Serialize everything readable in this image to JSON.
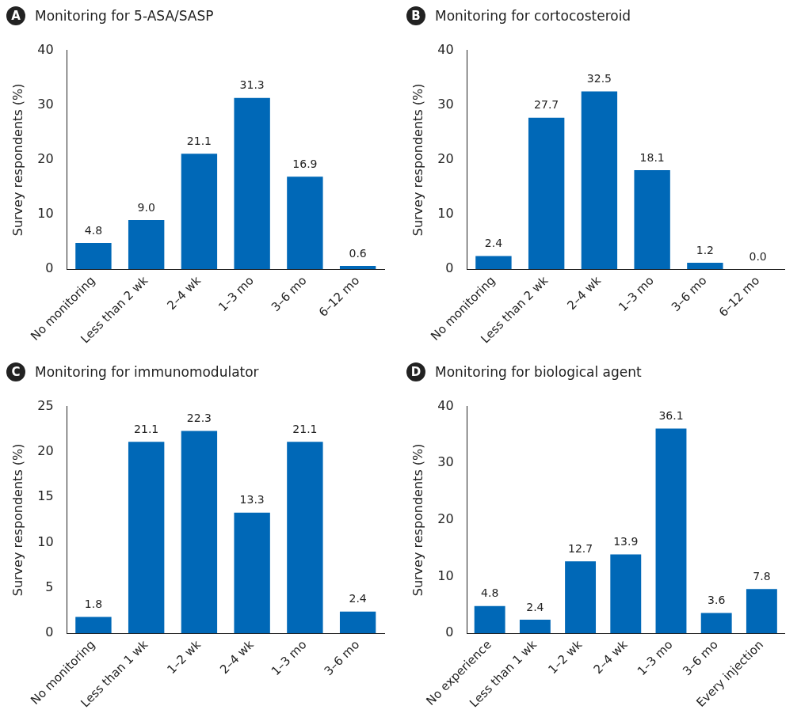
{
  "chart_data": [
    {
      "type": "bar",
      "title": "Monitoring for 5-ASA/SASP",
      "annotations": [
        "A"
      ],
      "ylabel": "Survey respondents (%)",
      "categories": [
        "No monitoring",
        "Less than 2 wk",
        "2–4 wk",
        "1–3 mo",
        "3–6 mo",
        "6–12 mo"
      ],
      "values": [
        4.8,
        9.0,
        21.1,
        31.3,
        16.9,
        0.6
      ],
      "color": "#0068b7",
      "ylim": [
        0,
        40
      ],
      "yticks": [
        0,
        10,
        20,
        30,
        40
      ],
      "grid": false,
      "legend": false,
      "value_labels": [
        "4.8",
        "9.0",
        "21.1",
        "31.3",
        "16.9",
        "0.6"
      ]
    },
    {
      "type": "bar",
      "title": "Monitoring for cortocosteroid",
      "annotations": [
        "B"
      ],
      "ylabel": "Survey respondents (%)",
      "categories": [
        "No monitoring",
        "Less than 2 wk",
        "2–4 wk",
        "1–3 mo",
        "3–6 mo",
        "6–12 mo"
      ],
      "values": [
        2.4,
        27.7,
        32.5,
        18.1,
        1.2,
        0.0
      ],
      "color": "#0068b7",
      "ylim": [
        0,
        40
      ],
      "yticks": [
        0,
        10,
        20,
        30,
        40
      ],
      "grid": false,
      "legend": false,
      "value_labels": [
        "2.4",
        "27.7",
        "32.5",
        "18.1",
        "1.2",
        "0.0"
      ]
    },
    {
      "type": "bar",
      "title": "Monitoring for immunomodulator",
      "annotations": [
        "C"
      ],
      "ylabel": "Survey respondents (%)",
      "categories": [
        "No monitoring",
        "Less than 1 wk",
        "1–2 wk",
        "2–4 wk",
        "1–3 mo",
        "3–6 mo"
      ],
      "values": [
        1.8,
        21.1,
        22.3,
        13.3,
        21.1,
        2.4
      ],
      "color": "#0068b7",
      "ylim": [
        0,
        25
      ],
      "yticks": [
        0,
        5,
        10,
        15,
        20,
        25
      ],
      "grid": false,
      "legend": false,
      "value_labels": [
        "1.8",
        "21.1",
        "22.3",
        "13.3",
        "21.1",
        "2.4"
      ]
    },
    {
      "type": "bar",
      "title": "Monitoring for biological agent",
      "annotations": [
        "D"
      ],
      "ylabel": "Survey respondents (%)",
      "categories": [
        "No experience",
        "Less than 1 wk",
        "1–2 wk",
        "2–4 wk",
        "1–3 mo",
        "3–6 mo",
        "Every injection"
      ],
      "values": [
        4.8,
        2.4,
        12.7,
        13.9,
        36.1,
        3.6,
        7.8
      ],
      "color": "#0068b7",
      "ylim": [
        0,
        40
      ],
      "yticks": [
        0,
        10,
        20,
        30,
        40
      ],
      "grid": false,
      "legend": false,
      "value_labels": [
        "4.8",
        "2.4",
        "12.7",
        "13.9",
        "36.1",
        "3.6",
        "7.8"
      ]
    }
  ]
}
